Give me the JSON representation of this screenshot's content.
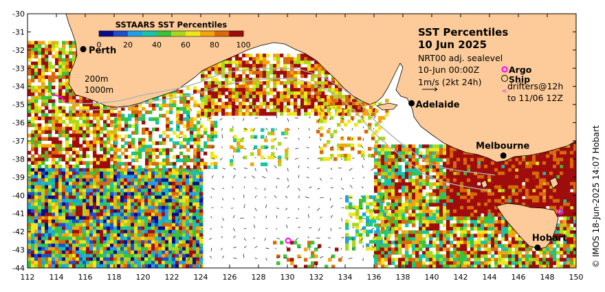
{
  "title": "SST Percentiles",
  "date": "10 Jun 2025",
  "current_product": "NRT00 adj. sealevel",
  "current_time": "10-Jun 00:00Z",
  "arrow_scale": "1m/s (2kt 24h)",
  "legend_argo": "Argo",
  "legend_ship": "Ship",
  "legend_drifters": "drifters@12h",
  "legend_drifters_to": "to 11/06 12Z",
  "colorbar": {
    "title": "SSTAARS SST Percentiles",
    "ticks": [
      "0",
      "20",
      "40",
      "60",
      "80",
      "100"
    ],
    "colors": [
      "#0b0b8e",
      "#1f4fd0",
      "#1fa0e8",
      "#17c4a8",
      "#39c33a",
      "#a7d81f",
      "#f0e619",
      "#f5a40f",
      "#d96a0c",
      "#9e0c0c"
    ]
  },
  "isobaths": [
    "200m",
    "1000m"
  ],
  "credit": "© IMOS 18-Jun-2025 14:07 Hobart",
  "lon_ticks": [
    "112",
    "114",
    "116",
    "118",
    "120",
    "122",
    "124",
    "126",
    "128",
    "130",
    "132",
    "134",
    "136",
    "138",
    "140",
    "142",
    "144",
    "146",
    "148",
    "150"
  ],
  "lat_ticks": [
    "-30",
    "-31",
    "-32",
    "-33",
    "-34",
    "-35",
    "-36",
    "-37",
    "-38",
    "-39",
    "-40",
    "-41",
    "-42",
    "-43",
    "-44"
  ],
  "cities": [
    {
      "name": "Perth",
      "lon": 115.86,
      "lat": -31.95
    },
    {
      "name": "Adelaide",
      "lon": 138.6,
      "lat": -34.93
    },
    {
      "name": "Melbourne",
      "lon": 144.96,
      "lat": -37.81
    },
    {
      "name": "Hobart",
      "lon": 147.33,
      "lat": -42.88
    }
  ],
  "argo_floats": [
    {
      "lon": 130.05,
      "lat": -42.5
    },
    {
      "lon": 148.9,
      "lat": -40.9
    }
  ],
  "colors": {
    "land": "#fccb99",
    "coast": "#000000",
    "isobath": "#b0b0b0"
  }
}
